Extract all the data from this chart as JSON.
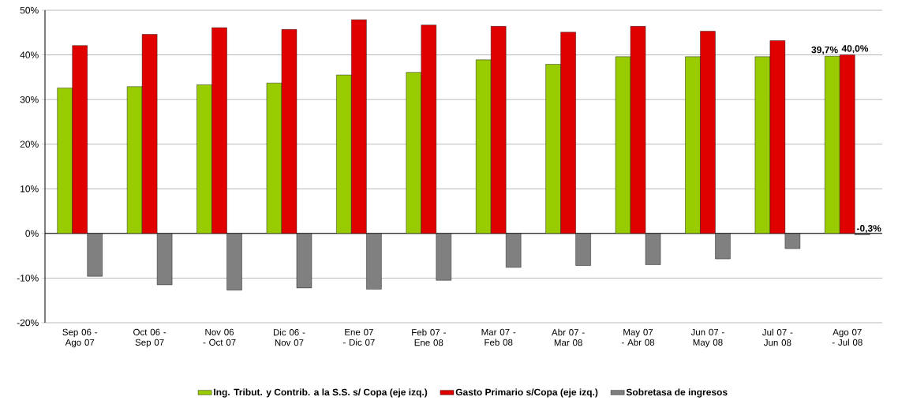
{
  "chart_data": {
    "type": "bar",
    "categories": [
      "Sep 06 - Ago 07",
      "Oct 06 - Sep 07",
      "Nov 06 - Oct 07",
      "Dic 06 - Nov 07",
      "Ene 07 - Dic 07",
      "Feb 07 - Ene 08",
      "Mar 07 - Feb 08",
      "Abr 07 - Mar 08",
      "May 07 - Abr 08",
      "Jun 07 - May 08",
      "Jul 07 - Jun 08",
      "Ago 07 - Jul 08"
    ],
    "series": [
      {
        "name": "Ing. Tribut. y Contrib. a la S.S. s/ Copa (eje izq.)",
        "color": "#99cc00",
        "values": [
          32.6,
          32.9,
          33.3,
          33.7,
          35.5,
          36.1,
          38.9,
          37.9,
          39.6,
          39.6,
          39.6,
          39.7
        ],
        "value_labels": [
          null,
          null,
          null,
          null,
          null,
          null,
          null,
          null,
          null,
          null,
          null,
          "39,7%"
        ]
      },
      {
        "name": "Gasto Primario s/Copa (eje izq.)",
        "color": "#e00000",
        "values": [
          42.1,
          44.6,
          46.1,
          45.7,
          47.9,
          46.7,
          46.4,
          45.1,
          46.4,
          45.3,
          43.2,
          40.0
        ],
        "value_labels": [
          null,
          null,
          null,
          null,
          null,
          null,
          null,
          null,
          null,
          null,
          null,
          "40,0%"
        ]
      },
      {
        "name": "Sobretasa de ingresos",
        "color": "#808080",
        "values": [
          -9.6,
          -11.5,
          -12.7,
          -12.2,
          -12.5,
          -10.5,
          -7.6,
          -7.2,
          -7.0,
          -5.7,
          -3.4,
          -0.3
        ],
        "value_labels": [
          null,
          null,
          null,
          null,
          null,
          null,
          null,
          null,
          null,
          null,
          null,
          "-0,3%"
        ]
      }
    ],
    "ylim": [
      -20,
      50
    ],
    "yticks": [
      {
        "value": -20,
        "label": "-20%"
      },
      {
        "value": -10,
        "label": "-10%"
      },
      {
        "value": 0,
        "label": "0%"
      },
      {
        "value": 10,
        "label": "10%"
      },
      {
        "value": 20,
        "label": "20%"
      },
      {
        "value": 30,
        "label": "30%"
      },
      {
        "value": 40,
        "label": "40%"
      },
      {
        "value": 50,
        "label": "50%"
      }
    ],
    "grid": "y",
    "legend": "bottom"
  }
}
